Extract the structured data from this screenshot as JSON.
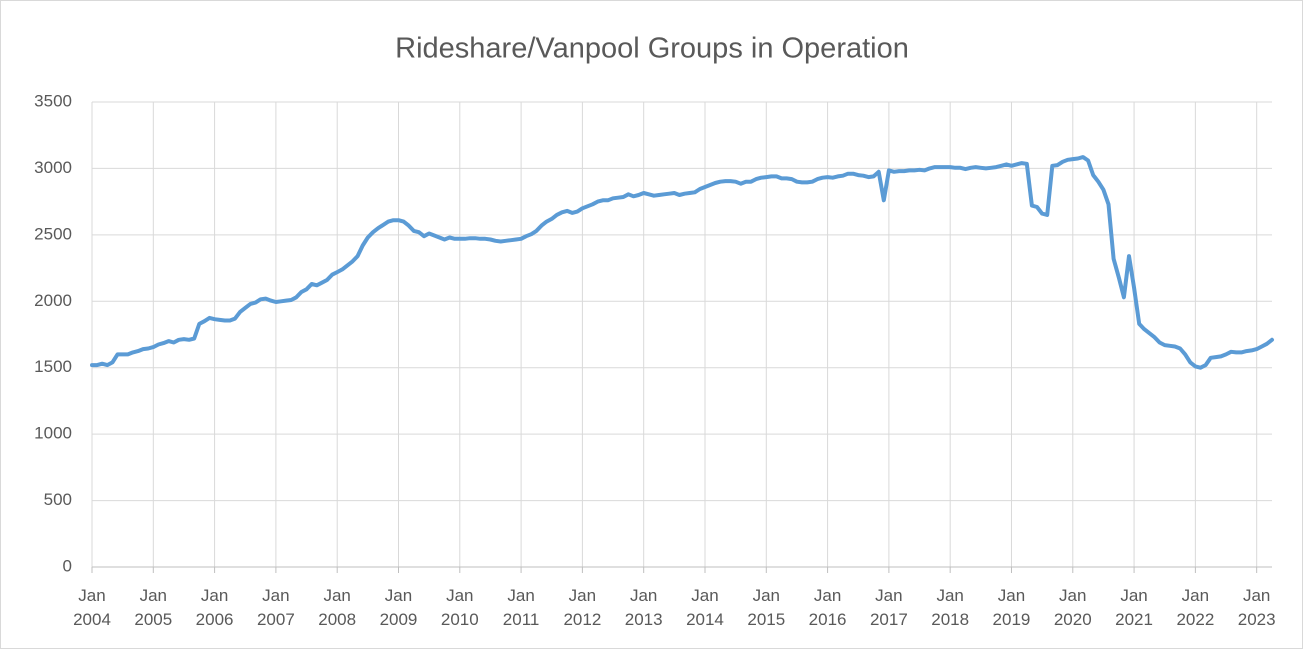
{
  "chart_data": {
    "type": "line",
    "title": "Rideshare/Vanpool Groups in Operation",
    "categories": [
      "Jan 2004",
      null,
      null,
      null,
      null,
      null,
      null,
      null,
      null,
      null,
      null,
      null,
      "Jan 2005",
      null,
      null,
      null,
      null,
      null,
      null,
      null,
      null,
      null,
      null,
      null,
      "Jan 2006",
      null,
      null,
      null,
      null,
      null,
      null,
      null,
      null,
      null,
      null,
      null,
      "Jan 2007",
      null,
      null,
      null,
      null,
      null,
      null,
      null,
      null,
      null,
      null,
      null,
      "Jan 2008",
      null,
      null,
      null,
      null,
      null,
      null,
      null,
      null,
      null,
      null,
      null,
      "Jan 2009",
      null,
      null,
      null,
      null,
      null,
      null,
      null,
      null,
      null,
      null,
      null,
      "Jan 2010",
      null,
      null,
      null,
      null,
      null,
      null,
      null,
      null,
      null,
      null,
      null,
      "Jan 2011",
      null,
      null,
      null,
      null,
      null,
      null,
      null,
      null,
      null,
      null,
      null,
      "Jan 2012",
      null,
      null,
      null,
      null,
      null,
      null,
      null,
      null,
      null,
      null,
      null,
      "Jan 2013",
      null,
      null,
      null,
      null,
      null,
      null,
      null,
      null,
      null,
      null,
      null,
      "Jan 2014",
      null,
      null,
      null,
      null,
      null,
      null,
      null,
      null,
      null,
      null,
      null,
      "Jan 2015",
      null,
      null,
      null,
      null,
      null,
      null,
      null,
      null,
      null,
      null,
      null,
      "Jan 2016",
      null,
      null,
      null,
      null,
      null,
      null,
      null,
      null,
      null,
      null,
      null,
      "Jan 2017",
      null,
      null,
      null,
      null,
      null,
      null,
      null,
      null,
      null,
      null,
      null,
      "Jan 2018",
      null,
      null,
      null,
      null,
      null,
      null,
      null,
      null,
      null,
      null,
      null,
      "Jan 2019",
      null,
      null,
      null,
      null,
      null,
      null,
      null,
      null,
      null,
      null,
      null,
      "Jan 2020",
      null,
      null,
      null,
      null,
      null,
      null,
      null,
      null,
      null,
      null,
      null,
      "Jan 2021",
      null,
      null,
      null,
      null,
      null,
      null,
      null,
      null,
      null,
      null,
      null,
      "Jan 2022",
      null,
      null,
      null,
      null,
      null,
      null,
      null,
      null,
      null,
      null,
      null,
      "Jan 2023",
      null,
      null,
      null
    ],
    "values": [
      1520,
      1520,
      1530,
      1520,
      1540,
      1600,
      1600,
      1600,
      1615,
      1625,
      1640,
      1645,
      1655,
      1675,
      1685,
      1700,
      1690,
      1710,
      1715,
      1710,
      1720,
      1830,
      1850,
      1875,
      1865,
      1860,
      1855,
      1855,
      1870,
      1920,
      1950,
      1980,
      1990,
      2015,
      2020,
      2005,
      1995,
      2000,
      2005,
      2010,
      2030,
      2070,
      2090,
      2130,
      2120,
      2140,
      2160,
      2200,
      2220,
      2240,
      2270,
      2300,
      2340,
      2420,
      2480,
      2520,
      2550,
      2575,
      2600,
      2610,
      2610,
      2600,
      2570,
      2530,
      2520,
      2490,
      2510,
      2495,
      2480,
      2465,
      2480,
      2470,
      2470,
      2470,
      2475,
      2475,
      2470,
      2470,
      2465,
      2455,
      2450,
      2455,
      2460,
      2465,
      2470,
      2490,
      2505,
      2530,
      2570,
      2600,
      2620,
      2650,
      2670,
      2680,
      2665,
      2675,
      2700,
      2715,
      2730,
      2750,
      2760,
      2760,
      2775,
      2780,
      2785,
      2805,
      2790,
      2800,
      2815,
      2805,
      2795,
      2800,
      2805,
      2810,
      2815,
      2800,
      2810,
      2815,
      2820,
      2845,
      2860,
      2875,
      2890,
      2900,
      2905,
      2905,
      2900,
      2885,
      2900,
      2900,
      2920,
      2930,
      2935,
      2940,
      2940,
      2925,
      2925,
      2920,
      2900,
      2895,
      2895,
      2900,
      2920,
      2930,
      2935,
      2930,
      2940,
      2945,
      2960,
      2960,
      2950,
      2945,
      2935,
      2940,
      2975,
      2760,
      2985,
      2975,
      2980,
      2980,
      2985,
      2985,
      2990,
      2985,
      3000,
      3010,
      3010,
      3010,
      3010,
      3005,
      3005,
      2995,
      3005,
      3010,
      3005,
      3000,
      3005,
      3010,
      3020,
      3030,
      3020,
      3030,
      3040,
      3035,
      2720,
      2710,
      2660,
      2650,
      3020,
      3025,
      3050,
      3065,
      3070,
      3075,
      3085,
      3060,
      2950,
      2900,
      2840,
      2730,
      2320,
      2180,
      2030,
      2340,
      2100,
      1830,
      1790,
      1760,
      1730,
      1690,
      1670,
      1665,
      1660,
      1645,
      1600,
      1540,
      1510,
      1500,
      1520,
      1575,
      1580,
      1585,
      1600,
      1620,
      1615,
      1615,
      1625,
      1630,
      1640,
      1660,
      1680,
      1710
    ],
    "color": "#5b9bd5",
    "ylim": [
      0,
      3500
    ],
    "yticks": [
      0,
      500,
      1000,
      1500,
      2000,
      2500,
      3000,
      3500
    ],
    "grid": true
  }
}
